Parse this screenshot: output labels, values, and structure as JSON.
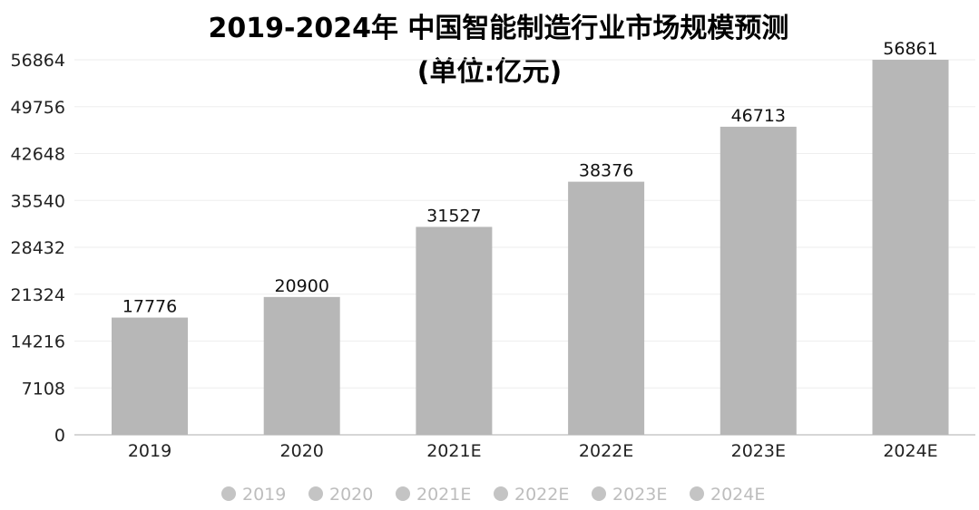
{
  "title_line1": "2019-2024年 中国智能制造行业市场规模预测",
  "title_line2": "(单位:亿元)",
  "chart_data": {
    "type": "bar",
    "categories": [
      "2019",
      "2020",
      "2021E",
      "2022E",
      "2023E",
      "2024E"
    ],
    "values": [
      17776,
      20900,
      31527,
      38376,
      46713,
      56861
    ],
    "data_labels": [
      "17776",
      "20900",
      "31527",
      "38376",
      "46713",
      "56861"
    ],
    "yticks": [
      0,
      7108,
      14216,
      21324,
      28432,
      35540,
      42648,
      49756,
      56864
    ],
    "ylim": [
      0,
      56864
    ],
    "xlabel": "",
    "ylabel": "",
    "grid": true,
    "legend": {
      "placement": "bottom",
      "entries": [
        "2019",
        "2020",
        "2021E",
        "2022E",
        "2023E",
        "2024E"
      ]
    },
    "colors": {
      "bar": "#b7b7b7",
      "grid": "#eeeeee",
      "axis": "#c8c8c8",
      "legend_marker": "#c4c4c4"
    }
  }
}
